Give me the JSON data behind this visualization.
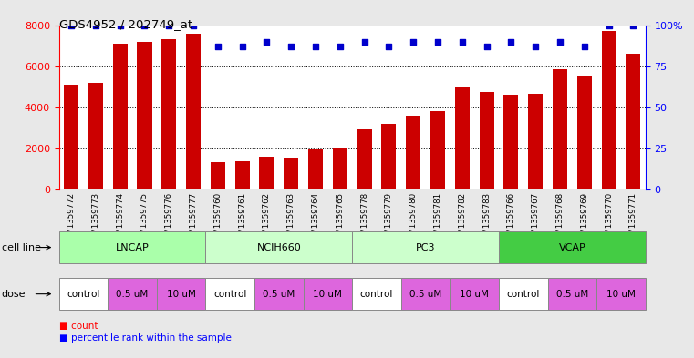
{
  "title": "GDS4952 / 202749_at",
  "samples": [
    "GSM1359772",
    "GSM1359773",
    "GSM1359774",
    "GSM1359775",
    "GSM1359776",
    "GSM1359777",
    "GSM1359760",
    "GSM1359761",
    "GSM1359762",
    "GSM1359763",
    "GSM1359764",
    "GSM1359765",
    "GSM1359778",
    "GSM1359779",
    "GSM1359780",
    "GSM1359781",
    "GSM1359782",
    "GSM1359783",
    "GSM1359766",
    "GSM1359767",
    "GSM1359768",
    "GSM1359769",
    "GSM1359770",
    "GSM1359771"
  ],
  "counts": [
    5100,
    5200,
    7100,
    7200,
    7300,
    7600,
    1350,
    1400,
    1600,
    1550,
    1950,
    2000,
    2950,
    3200,
    3600,
    3800,
    4950,
    4750,
    4600,
    4650,
    5850,
    5550,
    7700,
    6600
  ],
  "percentile_ranks": [
    100,
    100,
    100,
    100,
    100,
    100,
    87,
    87,
    90,
    87,
    87,
    87,
    90,
    87,
    90,
    90,
    90,
    87,
    90,
    87,
    90,
    87,
    100,
    100
  ],
  "bar_color": "#cc0000",
  "dot_color": "#0000cc",
  "cell_lines": [
    {
      "name": "LNCAP",
      "start": 0,
      "end": 6,
      "color": "#aaffaa"
    },
    {
      "name": "NCIH660",
      "start": 6,
      "end": 12,
      "color": "#ccffcc"
    },
    {
      "name": "PC3",
      "start": 12,
      "end": 18,
      "color": "#ccffcc"
    },
    {
      "name": "VCAP",
      "start": 18,
      "end": 24,
      "color": "#44cc44"
    }
  ],
  "doses": [
    {
      "label": "control",
      "start": 0,
      "end": 2
    },
    {
      "label": "0.5 uM",
      "start": 2,
      "end": 4
    },
    {
      "label": "10 uM",
      "start": 4,
      "end": 6
    },
    {
      "label": "control",
      "start": 6,
      "end": 8
    },
    {
      "label": "0.5 uM",
      "start": 8,
      "end": 10
    },
    {
      "label": "10 uM",
      "start": 10,
      "end": 12
    },
    {
      "label": "control",
      "start": 12,
      "end": 14
    },
    {
      "label": "0.5 uM",
      "start": 14,
      "end": 16
    },
    {
      "label": "10 uM",
      "start": 16,
      "end": 18
    },
    {
      "label": "control",
      "start": 18,
      "end": 20
    },
    {
      "label": "0.5 uM",
      "start": 20,
      "end": 22
    },
    {
      "label": "10 uM",
      "start": 22,
      "end": 24
    }
  ],
  "dose_colors": {
    "control": "#ffffff",
    "0.5 uM": "#dd66dd",
    "10 uM": "#dd66dd"
  },
  "ylim_left": [
    0,
    8000
  ],
  "ylim_right": [
    0,
    100
  ],
  "yticks_left": [
    0,
    2000,
    4000,
    6000,
    8000
  ],
  "yticks_right": [
    0,
    25,
    50,
    75,
    100
  ],
  "background_color": "#e8e8e8",
  "plot_bg_color": "#ffffff"
}
